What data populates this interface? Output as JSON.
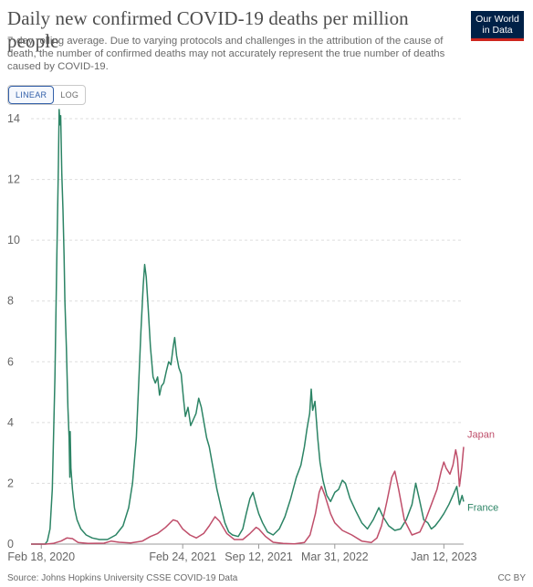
{
  "header": {
    "title": "Daily new confirmed COVID-19 deaths per million people",
    "subtitle": "7-day rolling average. Due to varying protocols and challenges in the attribution of the cause of death, the number of confirmed deaths may not accurately represent the true number of deaths caused by COVID-19."
  },
  "logo": {
    "line1": "Our World",
    "line2": "in Data",
    "bg_color": "#002147",
    "accent_color": "#ce261e"
  },
  "scale_toggle": {
    "linear_label": "LINEAR",
    "log_label": "LOG",
    "selected": "LINEAR"
  },
  "footer": {
    "source": "Source: Johns Hopkins University CSSE COVID-19 Data",
    "license": "CC BY"
  },
  "chart_data": {
    "type": "line",
    "title": "Daily new confirmed COVID-19 deaths per million people",
    "xlabel": "",
    "ylabel": "",
    "x_range": [
      "2020-01-22",
      "2023-03-05"
    ],
    "ylim": [
      0,
      14
    ],
    "y_ticks": [
      0,
      2,
      4,
      6,
      8,
      10,
      12,
      14
    ],
    "x_ticks": [
      "2020-02-18",
      "2021-02-24",
      "2021-09-12",
      "2022-03-31",
      "2023-01-12"
    ],
    "x_tick_labels": [
      "Feb 18, 2020",
      "Feb 24, 2021",
      "Sep 12, 2021",
      "Mar 31, 2022",
      "Jan 12, 2023"
    ],
    "grid": "horizontal-dashed",
    "legend": "inline-right",
    "series": [
      {
        "name": "France",
        "color": "#2c8465",
        "points": [
          [
            "2020-01-22",
            0
          ],
          [
            "2020-02-18",
            0
          ],
          [
            "2020-02-28",
            0
          ],
          [
            "2020-03-05",
            0.1
          ],
          [
            "2020-03-12",
            0.5
          ],
          [
            "2020-03-18",
            1.8
          ],
          [
            "2020-03-25",
            5.5
          ],
          [
            "2020-03-30",
            9.5
          ],
          [
            "2020-04-03",
            12.5
          ],
          [
            "2020-04-05",
            14.3
          ],
          [
            "2020-04-07",
            13.8
          ],
          [
            "2020-04-09",
            14.1
          ],
          [
            "2020-04-12",
            12.2
          ],
          [
            "2020-04-15",
            11.0
          ],
          [
            "2020-04-18",
            9.5
          ],
          [
            "2020-04-20",
            8.0
          ],
          [
            "2020-04-24",
            6.5
          ],
          [
            "2020-04-28",
            4.5
          ],
          [
            "2020-05-01",
            3.5
          ],
          [
            "2020-05-03",
            2.2
          ],
          [
            "2020-05-04",
            3.7
          ],
          [
            "2020-05-06",
            2.5
          ],
          [
            "2020-05-10",
            1.8
          ],
          [
            "2020-05-15",
            1.2
          ],
          [
            "2020-05-22",
            0.8
          ],
          [
            "2020-06-01",
            0.5
          ],
          [
            "2020-06-15",
            0.3
          ],
          [
            "2020-07-01",
            0.2
          ],
          [
            "2020-07-20",
            0.15
          ],
          [
            "2020-08-10",
            0.15
          ],
          [
            "2020-09-01",
            0.3
          ],
          [
            "2020-09-20",
            0.6
          ],
          [
            "2020-10-05",
            1.2
          ],
          [
            "2020-10-15",
            2.0
          ],
          [
            "2020-10-25",
            3.5
          ],
          [
            "2020-11-01",
            5.5
          ],
          [
            "2020-11-06",
            7.0
          ],
          [
            "2020-11-12",
            8.5
          ],
          [
            "2020-11-16",
            9.2
          ],
          [
            "2020-11-20",
            8.8
          ],
          [
            "2020-11-25",
            7.8
          ],
          [
            "2020-12-01",
            6.5
          ],
          [
            "2020-12-08",
            5.5
          ],
          [
            "2020-12-14",
            5.3
          ],
          [
            "2020-12-20",
            5.5
          ],
          [
            "2020-12-25",
            4.9
          ],
          [
            "2020-12-30",
            5.2
          ],
          [
            "2021-01-05",
            5.3
          ],
          [
            "2021-01-12",
            5.7
          ],
          [
            "2021-01-18",
            6.0
          ],
          [
            "2021-01-24",
            5.9
          ],
          [
            "2021-01-30",
            6.5
          ],
          [
            "2021-02-03",
            6.8
          ],
          [
            "2021-02-08",
            6.2
          ],
          [
            "2021-02-14",
            5.8
          ],
          [
            "2021-02-20",
            5.6
          ],
          [
            "2021-02-26",
            4.8
          ],
          [
            "2021-03-03",
            4.2
          ],
          [
            "2021-03-10",
            4.5
          ],
          [
            "2021-03-17",
            3.9
          ],
          [
            "2021-03-24",
            4.1
          ],
          [
            "2021-03-31",
            4.3
          ],
          [
            "2021-04-07",
            4.8
          ],
          [
            "2021-04-14",
            4.5
          ],
          [
            "2021-04-21",
            4.0
          ],
          [
            "2021-04-28",
            3.5
          ],
          [
            "2021-05-05",
            3.2
          ],
          [
            "2021-05-15",
            2.5
          ],
          [
            "2021-05-25",
            1.8
          ],
          [
            "2021-06-05",
            1.2
          ],
          [
            "2021-06-15",
            0.7
          ],
          [
            "2021-06-25",
            0.4
          ],
          [
            "2021-07-05",
            0.3
          ],
          [
            "2021-07-20",
            0.25
          ],
          [
            "2021-08-01",
            0.5
          ],
          [
            "2021-08-10",
            1.0
          ],
          [
            "2021-08-20",
            1.5
          ],
          [
            "2021-08-28",
            1.7
          ],
          [
            "2021-09-05",
            1.3
          ],
          [
            "2021-09-12",
            1.0
          ],
          [
            "2021-09-22",
            0.7
          ],
          [
            "2021-10-05",
            0.4
          ],
          [
            "2021-10-20",
            0.3
          ],
          [
            "2021-11-05",
            0.5
          ],
          [
            "2021-11-20",
            0.9
          ],
          [
            "2021-12-05",
            1.5
          ],
          [
            "2021-12-20",
            2.2
          ],
          [
            "2022-01-01",
            2.6
          ],
          [
            "2022-01-10",
            3.2
          ],
          [
            "2022-01-17",
            3.8
          ],
          [
            "2022-01-24",
            4.3
          ],
          [
            "2022-01-28",
            5.1
          ],
          [
            "2022-02-01",
            4.4
          ],
          [
            "2022-02-07",
            4.7
          ],
          [
            "2022-02-14",
            3.5
          ],
          [
            "2022-02-20",
            2.7
          ],
          [
            "2022-02-28",
            2.1
          ],
          [
            "2022-03-10",
            1.6
          ],
          [
            "2022-03-20",
            1.4
          ],
          [
            "2022-03-31",
            1.7
          ],
          [
            "2022-04-10",
            1.8
          ],
          [
            "2022-04-20",
            2.1
          ],
          [
            "2022-04-28",
            2.0
          ],
          [
            "2022-05-10",
            1.5
          ],
          [
            "2022-05-25",
            1.1
          ],
          [
            "2022-06-10",
            0.7
          ],
          [
            "2022-06-25",
            0.5
          ],
          [
            "2022-07-10",
            0.8
          ],
          [
            "2022-07-25",
            1.2
          ],
          [
            "2022-08-05",
            0.9
          ],
          [
            "2022-08-20",
            0.6
          ],
          [
            "2022-09-05",
            0.45
          ],
          [
            "2022-09-20",
            0.5
          ],
          [
            "2022-10-05",
            0.8
          ],
          [
            "2022-10-20",
            1.3
          ],
          [
            "2022-10-30",
            2.0
          ],
          [
            "2022-11-08",
            1.5
          ],
          [
            "2022-11-20",
            0.8
          ],
          [
            "2022-12-01",
            0.7
          ],
          [
            "2022-12-10",
            0.5
          ],
          [
            "2022-12-20",
            0.6
          ],
          [
            "2023-01-01",
            0.8
          ],
          [
            "2023-01-12",
            1.0
          ],
          [
            "2023-01-25",
            1.3
          ],
          [
            "2023-02-05",
            1.6
          ],
          [
            "2023-02-15",
            1.9
          ],
          [
            "2023-02-22",
            1.3
          ],
          [
            "2023-03-01",
            1.6
          ],
          [
            "2023-03-05",
            1.4
          ]
        ]
      },
      {
        "name": "Japan",
        "color": "#bf4e6a",
        "points": [
          [
            "2020-01-22",
            0
          ],
          [
            "2020-03-01",
            0
          ],
          [
            "2020-03-20",
            0.02
          ],
          [
            "2020-04-10",
            0.1
          ],
          [
            "2020-04-25",
            0.2
          ],
          [
            "2020-05-10",
            0.18
          ],
          [
            "2020-05-25",
            0.05
          ],
          [
            "2020-06-20",
            0.02
          ],
          [
            "2020-08-01",
            0.03
          ],
          [
            "2020-08-20",
            0.1
          ],
          [
            "2020-09-10",
            0.06
          ],
          [
            "2020-10-10",
            0.04
          ],
          [
            "2020-11-10",
            0.1
          ],
          [
            "2020-12-01",
            0.25
          ],
          [
            "2020-12-20",
            0.35
          ],
          [
            "2021-01-10",
            0.55
          ],
          [
            "2021-01-30",
            0.8
          ],
          [
            "2021-02-10",
            0.75
          ],
          [
            "2021-02-24",
            0.5
          ],
          [
            "2021-03-15",
            0.3
          ],
          [
            "2021-04-01",
            0.2
          ],
          [
            "2021-04-20",
            0.35
          ],
          [
            "2021-05-05",
            0.6
          ],
          [
            "2021-05-20",
            0.9
          ],
          [
            "2021-06-01",
            0.75
          ],
          [
            "2021-06-20",
            0.35
          ],
          [
            "2021-07-10",
            0.15
          ],
          [
            "2021-08-01",
            0.15
          ],
          [
            "2021-08-20",
            0.35
          ],
          [
            "2021-09-05",
            0.55
          ],
          [
            "2021-09-12",
            0.5
          ],
          [
            "2021-09-30",
            0.25
          ],
          [
            "2021-10-20",
            0.06
          ],
          [
            "2021-11-15",
            0.02
          ],
          [
            "2021-12-15",
            0.01
          ],
          [
            "2022-01-10",
            0.05
          ],
          [
            "2022-01-25",
            0.3
          ],
          [
            "2022-02-08",
            1.0
          ],
          [
            "2022-02-18",
            1.7
          ],
          [
            "2022-02-24",
            1.9
          ],
          [
            "2022-03-05",
            1.6
          ],
          [
            "2022-03-20",
            1.0
          ],
          [
            "2022-03-31",
            0.7
          ],
          [
            "2022-04-20",
            0.45
          ],
          [
            "2022-05-15",
            0.3
          ],
          [
            "2022-06-10",
            0.1
          ],
          [
            "2022-07-05",
            0.05
          ],
          [
            "2022-07-20",
            0.2
          ],
          [
            "2022-08-01",
            0.6
          ],
          [
            "2022-08-15",
            1.4
          ],
          [
            "2022-08-28",
            2.2
          ],
          [
            "2022-09-05",
            2.4
          ],
          [
            "2022-09-15",
            1.8
          ],
          [
            "2022-09-30",
            0.8
          ],
          [
            "2022-10-20",
            0.3
          ],
          [
            "2022-11-10",
            0.4
          ],
          [
            "2022-11-25",
            0.8
          ],
          [
            "2022-12-10",
            1.3
          ],
          [
            "2022-12-25",
            1.8
          ],
          [
            "2023-01-05",
            2.4
          ],
          [
            "2023-01-12",
            2.7
          ],
          [
            "2023-01-18",
            2.5
          ],
          [
            "2023-01-28",
            2.3
          ],
          [
            "2023-02-05",
            2.6
          ],
          [
            "2023-02-12",
            3.1
          ],
          [
            "2023-02-17",
            2.8
          ],
          [
            "2023-02-22",
            1.9
          ],
          [
            "2023-02-28",
            2.5
          ],
          [
            "2023-03-05",
            3.2
          ]
        ]
      }
    ]
  }
}
